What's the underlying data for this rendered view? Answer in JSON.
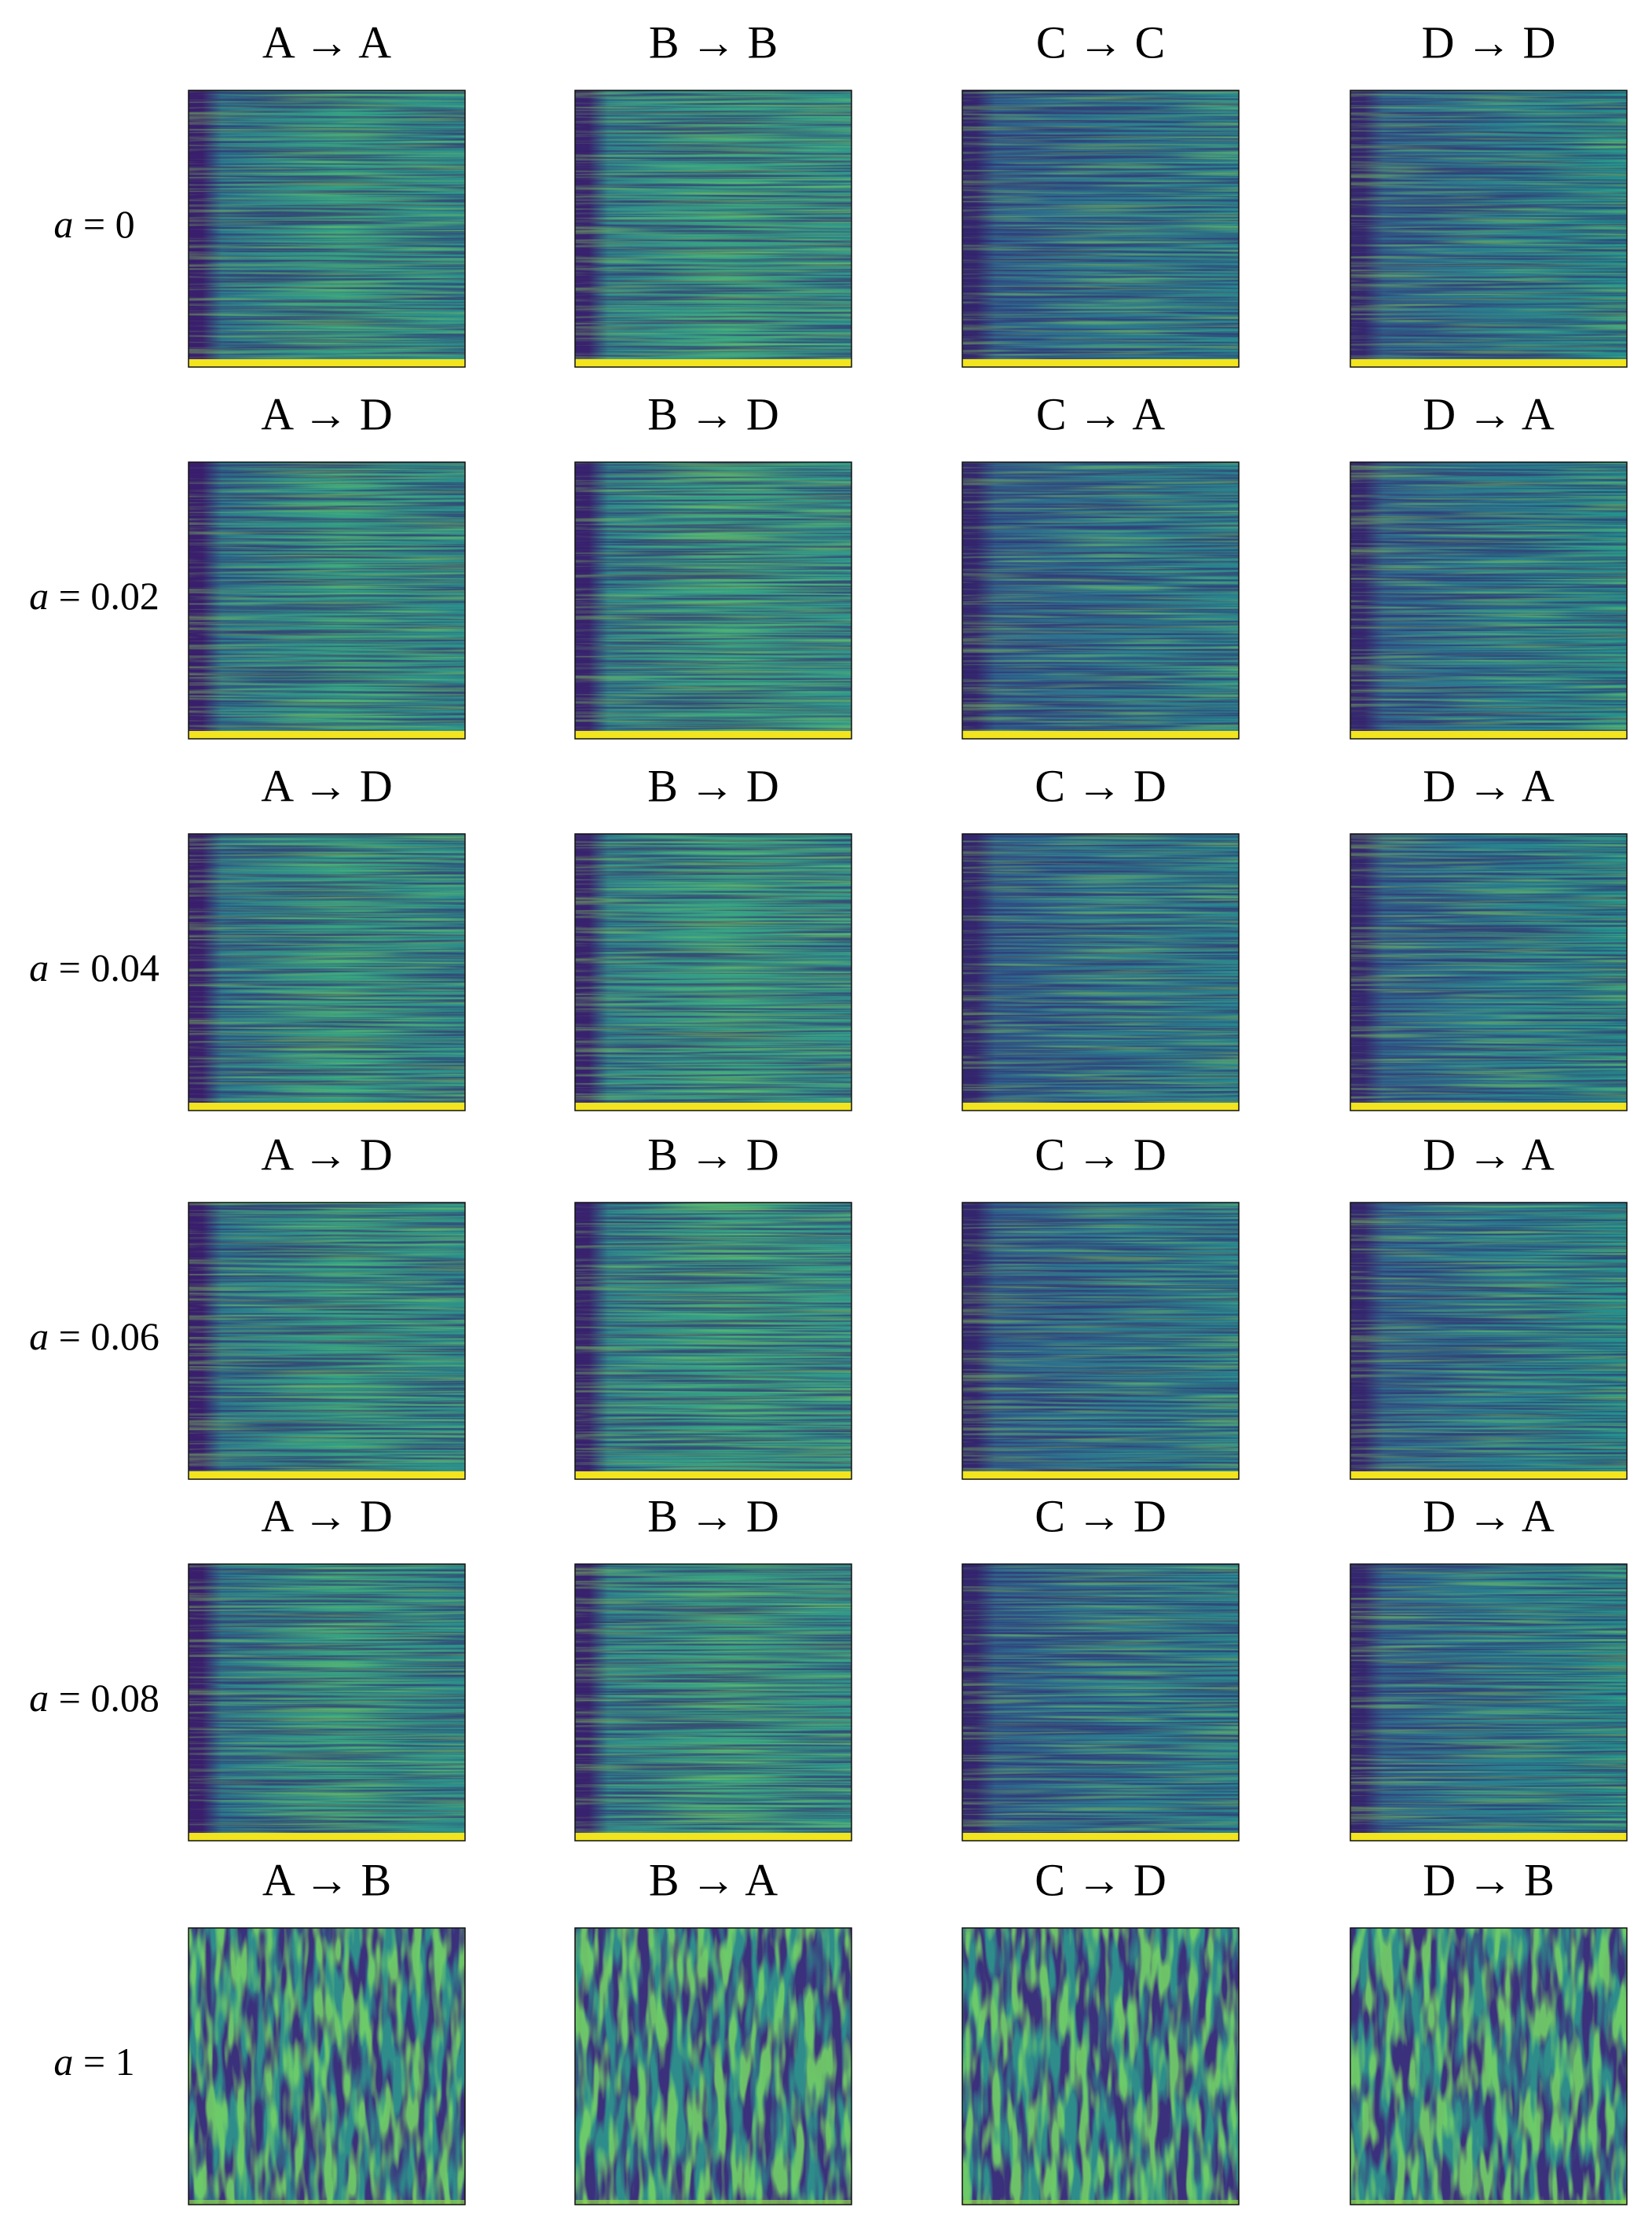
{
  "rows": [
    {
      "variable": "a",
      "setting": "= 0",
      "cells": [
        "A → A",
        "B → B",
        "C → C",
        "D → D"
      ]
    },
    {
      "variable": "a",
      "setting": "= 0.02",
      "cells": [
        "A → D",
        "B → D",
        "C → A",
        "D → A"
      ]
    },
    {
      "variable": "a",
      "setting": "= 0.04",
      "cells": [
        "A → D",
        "B → D",
        "C → D",
        "D → A"
      ]
    },
    {
      "variable": "a",
      "setting": "= 0.06",
      "cells": [
        "A → D",
        "B → D",
        "C → D",
        "D → A"
      ]
    },
    {
      "variable": "a",
      "setting": "= 0.08",
      "cells": [
        "A → D",
        "B → D",
        "C → D",
        "D → A"
      ]
    },
    {
      "variable": "a",
      "setting": "= 1",
      "cells": [
        "A → B",
        "B → A",
        "C → D",
        "D → B"
      ]
    }
  ]
}
